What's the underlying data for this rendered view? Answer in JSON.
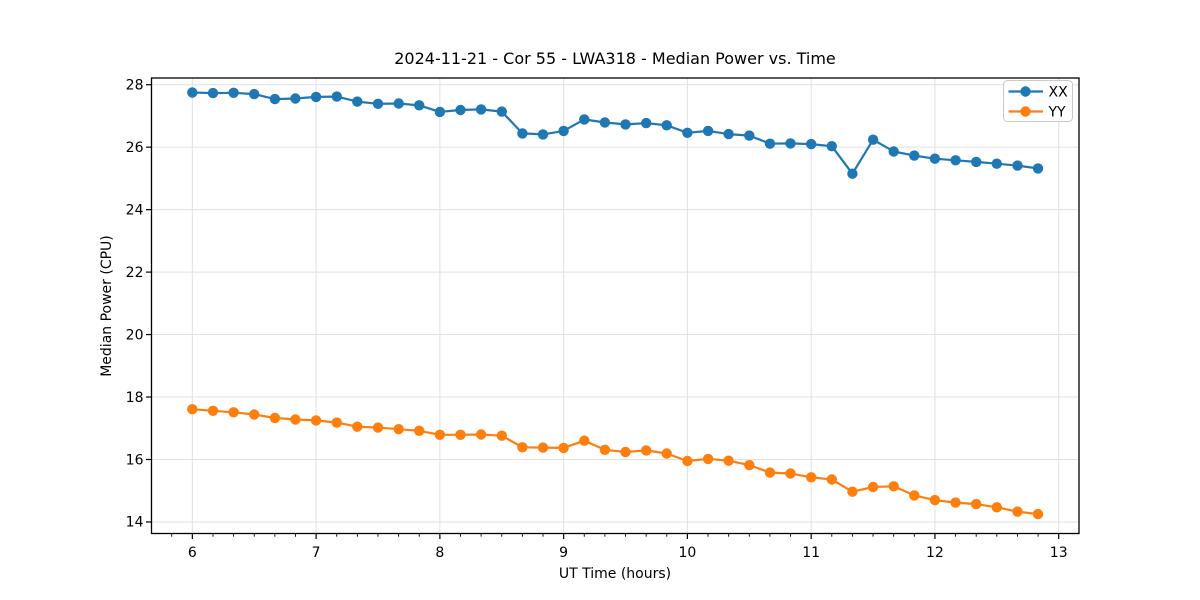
{
  "chart_data": {
    "type": "line",
    "title": "2024-11-21 - Cor 55 - LWA318 - Median Power vs. Time",
    "xlabel": "UT Time (hours)",
    "ylabel": "Median Power (CPU)",
    "grid": true,
    "legend_position": "upper right",
    "xlim": [
      5.67,
      13.164
    ],
    "ylim": [
      13.63,
      28.215
    ],
    "xticks": [
      6,
      7,
      8,
      9,
      10,
      11,
      12,
      13
    ],
    "yticks": [
      14,
      16,
      18,
      20,
      22,
      24,
      26,
      28
    ],
    "x_minor_per_major": 6,
    "x": [
      6.0,
      6.167,
      6.333,
      6.5,
      6.667,
      6.833,
      7.0,
      7.167,
      7.333,
      7.5,
      7.667,
      7.833,
      8.0,
      8.167,
      8.333,
      8.5,
      8.667,
      8.833,
      9.0,
      9.167,
      9.333,
      9.5,
      9.667,
      9.833,
      10.0,
      10.167,
      10.333,
      10.5,
      10.667,
      10.833,
      11.0,
      11.167,
      11.333,
      11.5,
      11.667,
      11.833,
      12.0,
      12.167,
      12.333,
      12.5,
      12.667,
      12.833
    ],
    "series": [
      {
        "name": "XX",
        "color": "#1f77b4",
        "values": [
          27.75,
          27.73,
          27.74,
          27.7,
          27.54,
          27.56,
          27.61,
          27.62,
          27.46,
          27.39,
          27.4,
          27.34,
          27.13,
          27.19,
          27.21,
          27.14,
          26.44,
          26.41,
          26.52,
          26.89,
          26.79,
          26.73,
          26.77,
          26.7,
          26.46,
          26.52,
          26.42,
          26.37,
          26.11,
          26.12,
          26.1,
          26.03,
          25.15,
          26.24,
          25.86,
          25.73,
          25.63,
          25.58,
          25.53,
          25.47,
          25.41,
          25.32
        ]
      },
      {
        "name": "YY",
        "color": "#ff7f0e",
        "values": [
          17.61,
          17.56,
          17.51,
          17.44,
          17.33,
          17.28,
          17.25,
          17.18,
          17.05,
          17.02,
          16.97,
          16.92,
          16.79,
          16.79,
          16.8,
          16.76,
          16.39,
          16.38,
          16.37,
          16.6,
          16.31,
          16.24,
          16.29,
          16.19,
          15.95,
          16.02,
          15.96,
          15.82,
          15.58,
          15.55,
          15.43,
          15.36,
          14.97,
          15.12,
          15.14,
          14.85,
          14.7,
          14.62,
          14.57,
          14.47,
          14.33,
          14.25
        ]
      }
    ]
  }
}
